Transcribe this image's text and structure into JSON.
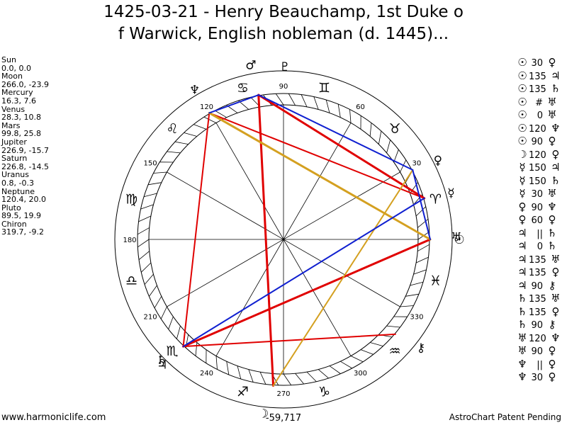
{
  "title_lines": [
    "1425-03-21 - Henry Beauchamp, 1st Duke o",
    "f Warwick, English nobleman (d. 1445)..."
  ],
  "planets": [
    {
      "name": "Sun",
      "coords": "0.0, 0.0",
      "lon": 0.0
    },
    {
      "name": "Moon",
      "coords": "266.0, -23.9",
      "lon": 266.0
    },
    {
      "name": "Mercury",
      "coords": "16.3, 7.6",
      "lon": 16.3
    },
    {
      "name": "Venus",
      "coords": "28.3, 10.8",
      "lon": 28.3
    },
    {
      "name": "Mars",
      "coords": "99.8, 25.8",
      "lon": 99.8
    },
    {
      "name": "Jupiter",
      "coords": "226.9, -15.7",
      "lon": 226.9
    },
    {
      "name": "Saturn",
      "coords": "226.8, -14.5",
      "lon": 226.8
    },
    {
      "name": "Uranus",
      "coords": "0.8, -0.3",
      "lon": 0.8
    },
    {
      "name": "Neptune",
      "coords": "120.4, 20.0",
      "lon": 120.4
    },
    {
      "name": "Pluto",
      "coords": "89.5, 19.9",
      "lon": 89.5
    },
    {
      "name": "Chiron",
      "coords": "319.7, -9.2",
      "lon": 319.7
    }
  ],
  "planet_glyphs": {
    "Sun": "☉",
    "Moon": "☽",
    "Mercury": "☿",
    "Venus": "♀",
    "Mars": "♂",
    "Jupiter": "♃",
    "Saturn": "♄",
    "Uranus": "♅",
    "Neptune": "♆",
    "Pluto": "♇",
    "Chiron": "⚷"
  },
  "aspects": [
    {
      "p1": "☉",
      "num": "30",
      "p2": "♀"
    },
    {
      "p1": "☉",
      "num": "135",
      "p2": "♃"
    },
    {
      "p1": "☉",
      "num": "135",
      "p2": "♄"
    },
    {
      "p1": "☉",
      "num": "#",
      "p2": "♅"
    },
    {
      "p1": "☉",
      "num": "0",
      "p2": "♅"
    },
    {
      "p1": "☉",
      "num": "120",
      "p2": "♆"
    },
    {
      "p1": "☉",
      "num": "90",
      "p2": "♀"
    },
    {
      "p1": "☽",
      "num": "120",
      "p2": "♀"
    },
    {
      "p1": "☿",
      "num": "150",
      "p2": "♃"
    },
    {
      "p1": "☿",
      "num": "150",
      "p2": "♄"
    },
    {
      "p1": "☿",
      "num": "30",
      "p2": "♅"
    },
    {
      "p1": "♀",
      "num": "90",
      "p2": "♆"
    },
    {
      "p1": "♀",
      "num": "60",
      "p2": "♀"
    },
    {
      "p1": "♃",
      "num": "||",
      "p2": "♄"
    },
    {
      "p1": "♃",
      "num": "0",
      "p2": "♄"
    },
    {
      "p1": "♃",
      "num": "135",
      "p2": "♅"
    },
    {
      "p1": "♃",
      "num": "135",
      "p2": "♀"
    },
    {
      "p1": "♃",
      "num": "90",
      "p2": "⚷"
    },
    {
      "p1": "♄",
      "num": "135",
      "p2": "♅"
    },
    {
      "p1": "♄",
      "num": "135",
      "p2": "♀"
    },
    {
      "p1": "♄",
      "num": "90",
      "p2": "⚷"
    },
    {
      "p1": "♅",
      "num": "120",
      "p2": "♆"
    },
    {
      "p1": "♅",
      "num": "90",
      "p2": "♀"
    },
    {
      "p1": "♆",
      "num": "||",
      "p2": "♀"
    },
    {
      "p1": "♆",
      "num": "30",
      "p2": "♀"
    }
  ],
  "zodiac_signs": [
    "♈",
    "♉",
    "♊",
    "♋",
    "♌",
    "♍",
    "♎",
    "♏",
    "♐",
    "♑",
    "♒",
    "♓"
  ],
  "degree_labels": [
    "30",
    "60",
    "90",
    "120",
    "150",
    "180",
    "210",
    "240",
    "270",
    "300",
    "330"
  ],
  "bottom_label": "-59,717",
  "footer_left": "www.harmoniclife.com",
  "footer_right": "AstroChart Patent Pending",
  "aspect_lines": [
    {
      "from": "Mars",
      "to": "Moon",
      "color": "#e00000",
      "width": 3
    },
    {
      "from": "Mars",
      "to": "Mercury",
      "color": "#e00000",
      "width": 3
    },
    {
      "from": "Neptune",
      "to": "Mercury",
      "color": "#e00000",
      "width": 2
    },
    {
      "from": "Neptune",
      "to": "Jupiter",
      "color": "#e00000",
      "width": 2
    },
    {
      "from": "Jupiter",
      "to": "Sun",
      "color": "#e00000",
      "width": 3
    },
    {
      "from": "Jupiter",
      "to": "Chiron",
      "color": "#e00000",
      "width": 2
    },
    {
      "from": "Neptune",
      "to": "Sun",
      "color": "#d4a020",
      "width": 3
    },
    {
      "from": "Venus",
      "to": "Moon",
      "color": "#d4a020",
      "width": 2
    },
    {
      "from": "Neptune",
      "to": "Mars",
      "color": "#1020d0",
      "width": 2
    },
    {
      "from": "Mars",
      "to": "Venus",
      "color": "#1020d0",
      "width": 2
    },
    {
      "from": "Venus",
      "to": "Sun",
      "color": "#1020d0",
      "width": 2
    },
    {
      "from": "Jupiter",
      "to": "Mercury",
      "color": "#1020d0",
      "width": 2
    }
  ]
}
